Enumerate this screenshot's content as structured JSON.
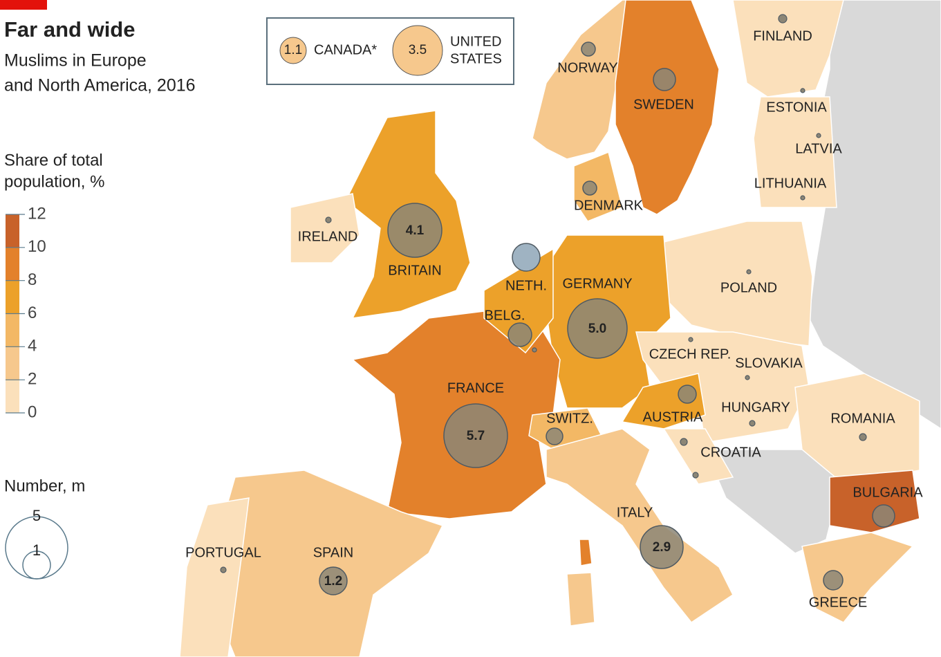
{
  "title": "Far and wide",
  "subtitle": [
    "Muslims in Europe",
    "and North America, 2016"
  ],
  "legend": {
    "share_title": [
      "Share of total",
      "population, %"
    ],
    "share_ticks": [
      12,
      10,
      8,
      6,
      4,
      2,
      0
    ],
    "number_title": "Number, m",
    "number_ticks": [
      5,
      1
    ]
  },
  "inset": [
    {
      "value": "1.1",
      "label": [
        "CANADA*"
      ]
    },
    {
      "value": "3.5",
      "label": [
        "UNITED",
        "STATES"
      ]
    }
  ],
  "countries": [
    {
      "name": "NORWAY"
    },
    {
      "name": "SWEDEN"
    },
    {
      "name": "FINLAND"
    },
    {
      "name": "ESTONIA"
    },
    {
      "name": "LATVIA"
    },
    {
      "name": "LITHUANIA"
    },
    {
      "name": "DENMARK"
    },
    {
      "name": "IRELAND"
    },
    {
      "name": "BRITAIN",
      "value": "4.1"
    },
    {
      "name": "NETH."
    },
    {
      "name": "GERMANY",
      "value": "5.0"
    },
    {
      "name": "BELG."
    },
    {
      "name": "POLAND"
    },
    {
      "name": "CZECH REP."
    },
    {
      "name": "SLOVAKIA"
    },
    {
      "name": "FRANCE",
      "value": "5.7"
    },
    {
      "name": "SWITZ."
    },
    {
      "name": "AUSTRIA"
    },
    {
      "name": "HUNGARY"
    },
    {
      "name": "ROMANIA"
    },
    {
      "name": "CROATIA"
    },
    {
      "name": "BULGARIA"
    },
    {
      "name": "ITALY",
      "value": "2.9"
    },
    {
      "name": "PORTUGAL"
    },
    {
      "name": "SPAIN",
      "value": "1.2"
    },
    {
      "name": "GREECE"
    }
  ]
}
